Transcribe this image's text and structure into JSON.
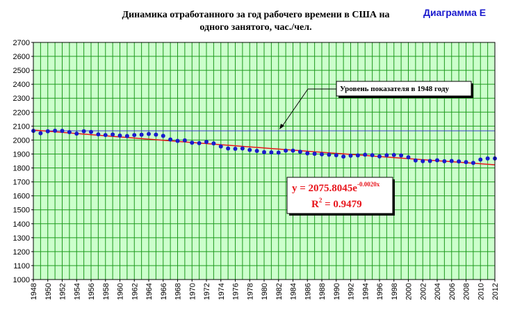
{
  "chart_data": {
    "type": "scatter",
    "title_line1": "Динамика отработанного за год рабочего времени в США на",
    "title_line2": "одного занятого, час./чел.",
    "diagram_label": "Диаграмма Е",
    "xlim": [
      1948,
      2012
    ],
    "ylim": [
      1000,
      2700
    ],
    "y_ticks": [
      1000,
      1100,
      1200,
      1300,
      1400,
      1500,
      1600,
      1700,
      1800,
      1900,
      2000,
      2100,
      2200,
      2300,
      2400,
      2500,
      2600,
      2700
    ],
    "x_ticks": [
      1948,
      1950,
      1952,
      1954,
      1956,
      1958,
      1960,
      1962,
      1964,
      1966,
      1968,
      1970,
      1972,
      1974,
      1976,
      1978,
      1980,
      1982,
      1984,
      1986,
      1988,
      1990,
      1992,
      1994,
      1996,
      1998,
      2000,
      2002,
      2004,
      2006,
      2008,
      2010,
      2012
    ],
    "grid": true,
    "x": [
      1948,
      1949,
      1950,
      1951,
      1952,
      1953,
      1954,
      1955,
      1956,
      1957,
      1958,
      1959,
      1960,
      1961,
      1962,
      1963,
      1964,
      1965,
      1966,
      1967,
      1968,
      1969,
      1970,
      1971,
      1972,
      1973,
      1974,
      1975,
      1976,
      1977,
      1978,
      1979,
      1980,
      1981,
      1982,
      1983,
      1984,
      1985,
      1986,
      1987,
      1988,
      1989,
      1990,
      1991,
      1992,
      1993,
      1994,
      1995,
      1996,
      1997,
      1998,
      1999,
      2000,
      2001,
      2002,
      2003,
      2004,
      2005,
      2006,
      2007,
      2008,
      2009,
      2010,
      2011,
      2012
    ],
    "series": [
      {
        "values": [
          2066,
          2049,
          2063,
          2067,
          2066,
          2057,
          2046,
          2063,
          2058,
          2041,
          2036,
          2040,
          2032,
          2029,
          2036,
          2038,
          2044,
          2039,
          2030,
          2004,
          1994,
          1998,
          1981,
          1978,
          1987,
          1976,
          1954,
          1940,
          1937,
          1940,
          1929,
          1922,
          1913,
          1912,
          1910,
          1924,
          1924,
          1916,
          1905,
          1902,
          1898,
          1895,
          1891,
          1882,
          1888,
          1890,
          1895,
          1892,
          1883,
          1891,
          1893,
          1890,
          1877,
          1854,
          1849,
          1850,
          1855,
          1848,
          1850,
          1847,
          1842,
          1836,
          1860,
          1868,
          1868
        ],
        "color": "#1a1acd"
      }
    ],
    "trend": {
      "a": 2075.8045,
      "b": -0.002,
      "color": "#e8141b"
    },
    "reference_line": {
      "value": 2066,
      "color": "#3a3acd",
      "label": "Уровень показателя в 1948 году"
    },
    "equation": {
      "main": "y = 2075.8045e",
      "exponent": "-0.0020x",
      "r2_prefix": "R",
      "r2_sup": "2",
      "r2_value": " = 0.9479"
    },
    "colors": {
      "plot_bg": "#ccffcc",
      "grid": "#1e9a1e",
      "frame": "#000000"
    }
  }
}
